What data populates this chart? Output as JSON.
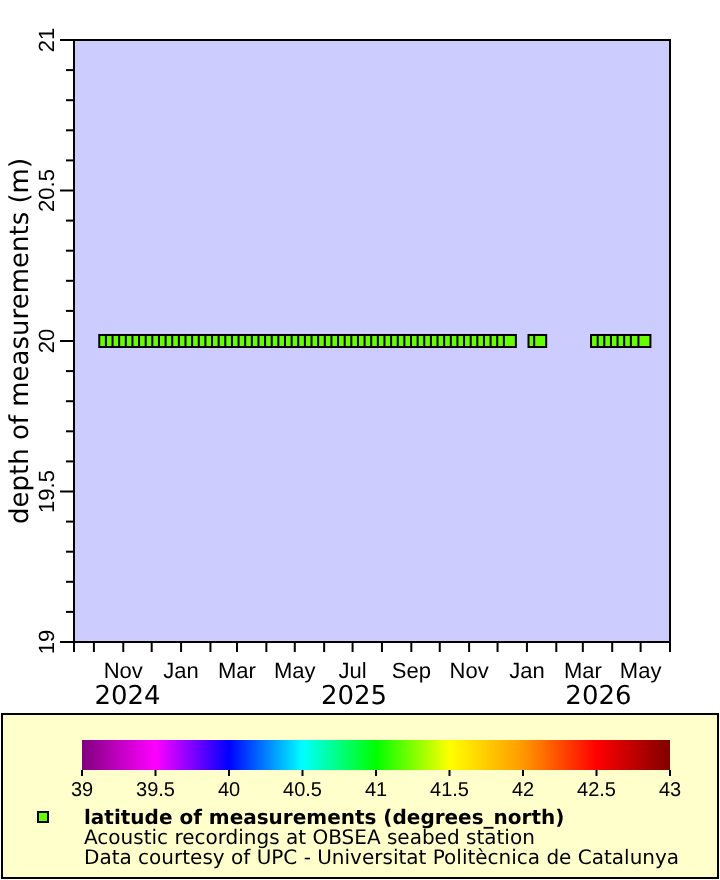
{
  "chart_data": {
    "type": "scatter",
    "ylabel": "depth of measurements (m)",
    "x": [
      "2024-10-13",
      "2024-10-20",
      "2024-10-27",
      "2024-11-03",
      "2024-11-10",
      "2024-11-17",
      "2024-11-24",
      "2024-12-01",
      "2024-12-08",
      "2024-12-15",
      "2024-12-22",
      "2024-12-29",
      "2025-01-05",
      "2025-01-12",
      "2025-01-19",
      "2025-01-26",
      "2025-02-02",
      "2025-02-09",
      "2025-02-16",
      "2025-02-23",
      "2025-03-02",
      "2025-03-09",
      "2025-03-16",
      "2025-03-23",
      "2025-03-30",
      "2025-04-06",
      "2025-04-13",
      "2025-04-20",
      "2025-04-27",
      "2025-05-04",
      "2025-05-11",
      "2025-05-18",
      "2025-05-25",
      "2025-06-01",
      "2025-06-08",
      "2025-06-15",
      "2025-06-22",
      "2025-06-29",
      "2025-07-06",
      "2025-07-13",
      "2025-07-20",
      "2025-07-27",
      "2025-08-03",
      "2025-08-10",
      "2025-08-17",
      "2025-08-24",
      "2025-08-31",
      "2025-09-07",
      "2025-09-14",
      "2025-09-21",
      "2025-09-28",
      "2025-10-05",
      "2025-10-12",
      "2025-10-19",
      "2025-10-26",
      "2025-11-02",
      "2025-11-09",
      "2025-11-16",
      "2025-11-23",
      "2025-11-30",
      "2025-12-07",
      "2025-12-14",
      "2026-01-09",
      "2026-01-15",
      "2026-03-16",
      "2026-03-23",
      "2026-03-30",
      "2026-04-06",
      "2026-04-13",
      "2026-04-20",
      "2026-04-27",
      "2026-05-05"
    ],
    "series": [
      {
        "name": "latitude of measurements (degrees_north)",
        "color": "#66ff00",
        "values": [
          20,
          20,
          20,
          20,
          20,
          20,
          20,
          20,
          20,
          20,
          20,
          20,
          20,
          20,
          20,
          20,
          20,
          20,
          20,
          20,
          20,
          20,
          20,
          20,
          20,
          20,
          20,
          20,
          20,
          20,
          20,
          20,
          20,
          20,
          20,
          20,
          20,
          20,
          20,
          20,
          20,
          20,
          20,
          20,
          20,
          20,
          20,
          20,
          20,
          20,
          20,
          20,
          20,
          20,
          20,
          20,
          20,
          20,
          20,
          20,
          20,
          20,
          20,
          20,
          20,
          20,
          20,
          20,
          20,
          20,
          20,
          20
        ],
        "cvalues": [
          41.2,
          41.2,
          41.2,
          41.2,
          41.2,
          41.2,
          41.2,
          41.2,
          41.2,
          41.2,
          41.2,
          41.2,
          41.2,
          41.2,
          41.2,
          41.2,
          41.2,
          41.2,
          41.2,
          41.2,
          41.2,
          41.2,
          41.2,
          41.2,
          41.2,
          41.2,
          41.2,
          41.2,
          41.2,
          41.2,
          41.2,
          41.2,
          41.2,
          41.2,
          41.2,
          41.2,
          41.2,
          41.2,
          41.2,
          41.2,
          41.2,
          41.2,
          41.2,
          41.2,
          41.2,
          41.2,
          41.2,
          41.2,
          41.2,
          41.2,
          41.2,
          41.2,
          41.2,
          41.2,
          41.2,
          41.2,
          41.2,
          41.2,
          41.2,
          41.2,
          41.2,
          41.2,
          41.2,
          41.2,
          41.2,
          41.2,
          41.2,
          41.2,
          41.2,
          41.2,
          41.2,
          41.2
        ]
      }
    ],
    "xlim": [
      "2024-09-10",
      "2026-06-01"
    ],
    "xticks": [
      {
        "value": "2024-10-01",
        "label": null
      },
      {
        "value": "2024-11-01",
        "label": "Nov"
      },
      {
        "value": "2024-12-01",
        "label": null
      },
      {
        "value": "2025-01-01",
        "label": "Jan"
      },
      {
        "value": "2025-02-01",
        "label": null
      },
      {
        "value": "2025-03-01",
        "label": "Mar"
      },
      {
        "value": "2025-04-01",
        "label": null
      },
      {
        "value": "2025-05-01",
        "label": "May"
      },
      {
        "value": "2025-06-01",
        "label": null
      },
      {
        "value": "2025-07-01",
        "label": "Jul"
      },
      {
        "value": "2025-08-01",
        "label": null
      },
      {
        "value": "2025-09-01",
        "label": "Sep"
      },
      {
        "value": "2025-10-01",
        "label": null
      },
      {
        "value": "2025-11-01",
        "label": "Nov"
      },
      {
        "value": "2025-12-01",
        "label": null
      },
      {
        "value": "2026-01-01",
        "label": "Jan"
      },
      {
        "value": "2026-02-01",
        "label": null
      },
      {
        "value": "2026-03-01",
        "label": "Mar"
      },
      {
        "value": "2026-04-01",
        "label": null
      },
      {
        "value": "2026-05-01",
        "label": "May"
      }
    ],
    "ylim": [
      19,
      21
    ],
    "yticks": [
      19,
      {
        "value": 19.1,
        "label": null
      },
      {
        "value": 19.2,
        "label": null
      },
      {
        "value": 19.3,
        "label": null
      },
      {
        "value": 19.4,
        "label": null
      },
      19.5,
      {
        "value": 19.6,
        "label": null
      },
      {
        "value": 19.7,
        "label": null
      },
      {
        "value": 19.8,
        "label": null
      },
      {
        "value": 19.9,
        "label": null
      },
      20,
      {
        "value": 20.1,
        "label": null
      },
      {
        "value": 20.2,
        "label": null
      },
      {
        "value": 20.3,
        "label": null
      },
      {
        "value": 20.4,
        "label": null
      },
      20.5,
      {
        "value": 20.6,
        "label": null
      },
      {
        "value": 20.7,
        "label": null
      },
      {
        "value": 20.8,
        "label": null
      },
      {
        "value": 20.9,
        "label": null
      },
      21
    ],
    "clim": [
      39,
      43
    ],
    "cticks": [
      39,
      39.5,
      40,
      40.5,
      41,
      41.5,
      42,
      42.5,
      43
    ],
    "marker": "square",
    "legend": "bottom",
    "annotations": [
      "2024",
      "2025",
      "2026",
      "Acoustic recordings at OBSEA seabed station",
      "Data courtesy of UPC - Universitat Politècnica de Catalunya"
    ]
  }
}
